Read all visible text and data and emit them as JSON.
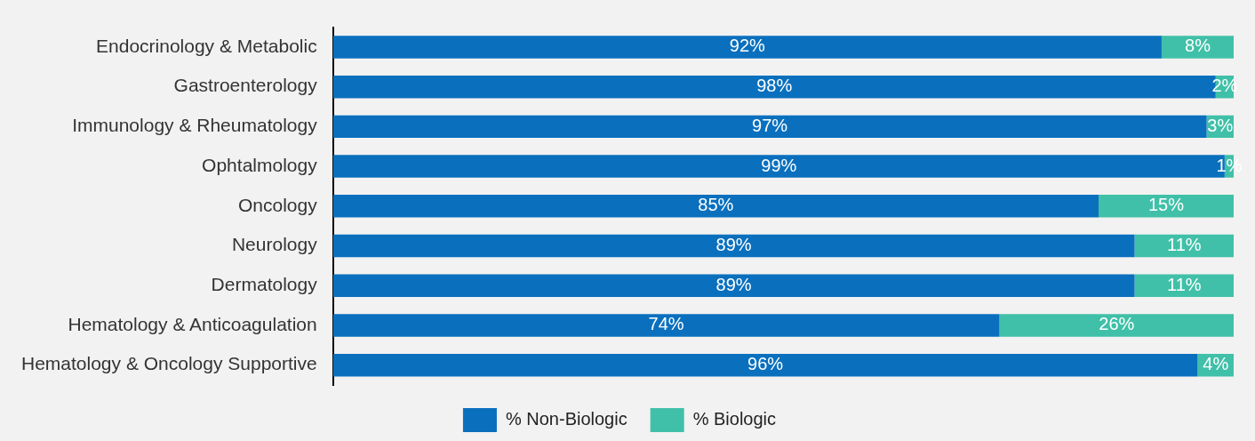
{
  "chart_data": {
    "type": "bar",
    "orientation": "horizontal",
    "stacked": true,
    "legend": "bottom",
    "grid": false,
    "categories": [
      "Endocrinology & Metabolic",
      "Gastroenterology",
      "Immunology & Rheumatology",
      "Ophtalmology",
      "Oncology",
      "Neurology",
      "Dermatology",
      "Hematology & Anticoagulation",
      "Hematology & Oncology Supportive"
    ],
    "series": [
      {
        "name": "% Non-Biologic",
        "color": "#0a70be",
        "values": [
          92,
          98,
          97,
          99,
          85,
          89,
          89,
          74,
          96
        ],
        "value_labels": [
          "92%",
          "98%",
          "97%",
          "99%",
          "85%",
          "89%",
          "89%",
          "74%",
          "96%"
        ]
      },
      {
        "name": "% Biologic",
        "color": "#40c0a8",
        "values": [
          8,
          2,
          3,
          1,
          15,
          11,
          11,
          26,
          4
        ],
        "value_labels": [
          "8%",
          "2%",
          "3%",
          "1%",
          "15%",
          "11%",
          "11%",
          "26%",
          "4%"
        ]
      }
    ]
  }
}
